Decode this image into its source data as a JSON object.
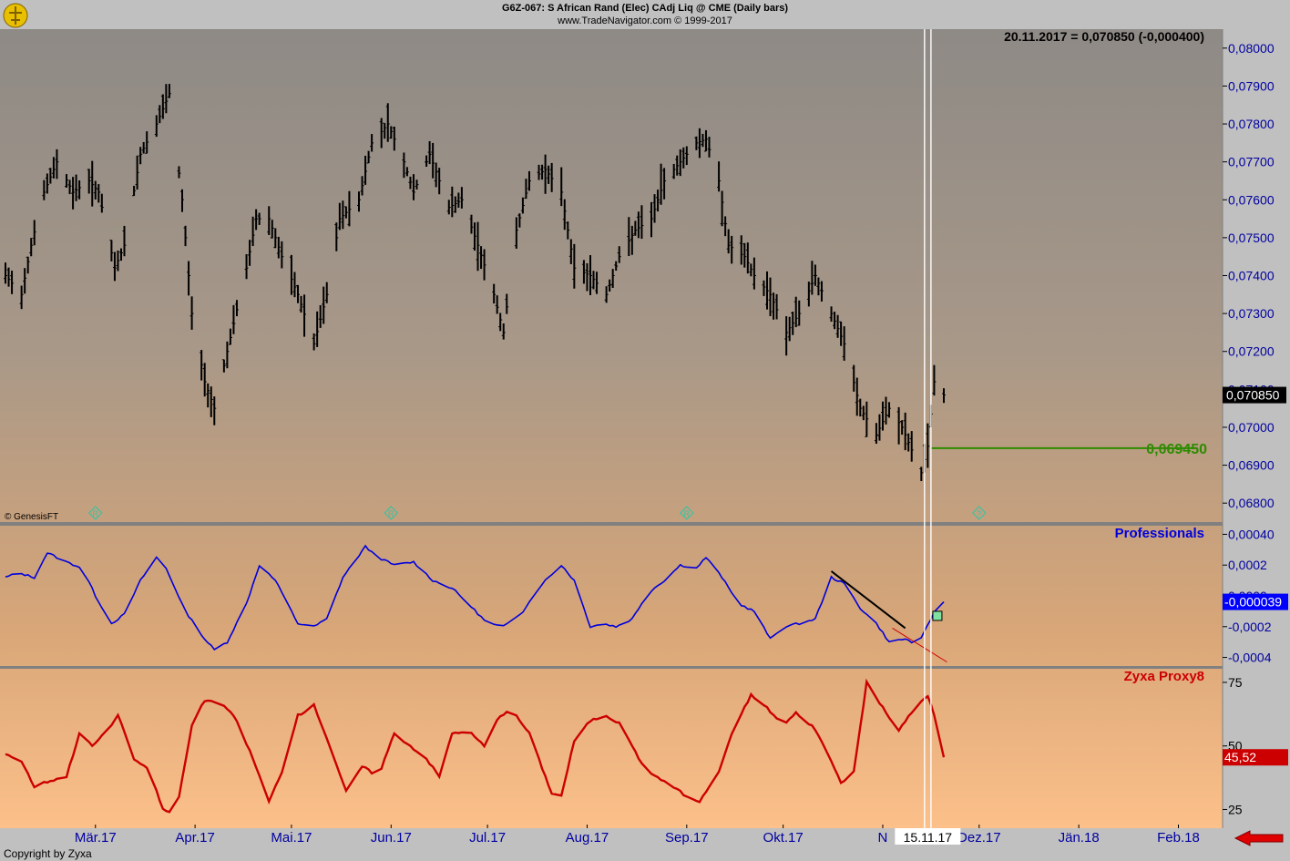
{
  "header": {
    "title": "G6Z-067:  S African Rand (Elec) CAdj Liq @ CME  (Daily bars)",
    "subtitle": "www.TradeNavigator.com © 1999-2017"
  },
  "footer": {
    "copyright": "Copyright by Zyxa"
  },
  "colors": {
    "price_bars": "#000000",
    "professionals": "#0000dd",
    "zyxa": "#cc0000",
    "target_line": "#2e8b00",
    "diamond_markers": "#40c0a0",
    "nav_arrow": "#e00000"
  },
  "chart_data": [
    {
      "type": "ohlc",
      "panel": "price",
      "readout": "20.11.2017 = 0,070850 (-0,000400)",
      "watermark": "© GenesisFT",
      "last_value_label": "0,070850",
      "horizontal_line": {
        "value": 0.06945,
        "label": "0,069450",
        "from_date": "2017-11-16",
        "to_date": "2018-02-07"
      },
      "ylim": [
        0.0675,
        0.0805
      ],
      "y_ticks": [
        0.068,
        0.069,
        0.07,
        0.071,
        0.072,
        0.073,
        0.074,
        0.075,
        0.076,
        0.077,
        0.078,
        0.079,
        0.08
      ],
      "y_tick_labels": [
        "0,06800",
        "0,06900",
        "0,07000",
        "0,07100",
        "0,07200",
        "0,07300",
        "0,07400",
        "0,07500",
        "0,07600",
        "0,07700",
        "0,07800",
        "0,07900",
        "0,08000"
      ],
      "close_path": [
        [
          "2017-02-01",
          0.074
        ],
        [
          "2017-02-06",
          0.0735
        ],
        [
          "2017-02-09",
          0.0748
        ],
        [
          "2017-02-13",
          0.0762
        ],
        [
          "2017-02-17",
          0.077
        ],
        [
          "2017-02-22",
          0.0762
        ],
        [
          "2017-02-27",
          0.0765
        ],
        [
          "2017-03-02",
          0.0762
        ],
        [
          "2017-03-07",
          0.0742
        ],
        [
          "2017-03-10",
          0.0748
        ],
        [
          "2017-03-15",
          0.0772
        ],
        [
          "2017-03-20",
          0.078
        ],
        [
          "2017-03-24",
          0.0788
        ],
        [
          "2017-03-28",
          0.076
        ],
        [
          "2017-03-31",
          0.073
        ],
        [
          "2017-04-04",
          0.0712
        ],
        [
          "2017-04-07",
          0.0705
        ],
        [
          "2017-04-11",
          0.072
        ],
        [
          "2017-04-17",
          0.0742
        ],
        [
          "2017-04-20",
          0.0755
        ],
        [
          "2017-04-24",
          0.0755
        ],
        [
          "2017-04-28",
          0.0745
        ],
        [
          "2017-05-03",
          0.0735
        ],
        [
          "2017-05-08",
          0.0722
        ],
        [
          "2017-05-12",
          0.0735
        ],
        [
          "2017-05-16",
          0.0755
        ],
        [
          "2017-05-22",
          0.076
        ],
        [
          "2017-05-26",
          0.0775
        ],
        [
          "2017-05-31",
          0.078
        ],
        [
          "2017-06-05",
          0.077
        ],
        [
          "2017-06-08",
          0.0762
        ],
        [
          "2017-06-13",
          0.0772
        ],
        [
          "2017-06-19",
          0.0758
        ],
        [
          "2017-06-23",
          0.076
        ],
        [
          "2017-06-28",
          0.0748
        ],
        [
          "2017-07-03",
          0.0735
        ],
        [
          "2017-07-06",
          0.0725
        ],
        [
          "2017-07-10",
          0.0752
        ],
        [
          "2017-07-14",
          0.0765
        ],
        [
          "2017-07-19",
          0.0768
        ],
        [
          "2017-07-24",
          0.0762
        ],
        [
          "2017-07-28",
          0.0742
        ],
        [
          "2017-08-02",
          0.074
        ],
        [
          "2017-08-07",
          0.0735
        ],
        [
          "2017-08-11",
          0.0745
        ],
        [
          "2017-08-16",
          0.0752
        ],
        [
          "2017-08-21",
          0.0755
        ],
        [
          "2017-08-25",
          0.0765
        ],
        [
          "2017-08-30",
          0.077
        ],
        [
          "2017-09-04",
          0.0775
        ],
        [
          "2017-09-07",
          0.0776
        ],
        [
          "2017-09-11",
          0.0765
        ],
        [
          "2017-09-14",
          0.0748
        ],
        [
          "2017-09-19",
          0.0745
        ],
        [
          "2017-09-22",
          0.074
        ],
        [
          "2017-09-27",
          0.0735
        ],
        [
          "2017-10-02",
          0.0725
        ],
        [
          "2017-10-06",
          0.073
        ],
        [
          "2017-10-11",
          0.074
        ],
        [
          "2017-10-16",
          0.073
        ],
        [
          "2017-10-20",
          0.0722
        ],
        [
          "2017-10-25",
          0.0705
        ],
        [
          "2017-10-30",
          0.0698
        ],
        [
          "2017-11-03",
          0.0705
        ],
        [
          "2017-11-07",
          0.07
        ],
        [
          "2017-11-13",
          0.0688
        ],
        [
          "2017-11-15",
          0.0695
        ],
        [
          "2017-11-17",
          0.0712
        ],
        [
          "2017-11-20",
          0.07085
        ]
      ]
    },
    {
      "type": "line",
      "panel": "indicator",
      "title": "Professionals",
      "last_value_label": "-0,000039",
      "ylim": [
        -0.00045,
        0.00045
      ],
      "y_ticks": [
        -0.0004,
        -0.0002,
        0.0,
        0.0002,
        0.0004
      ],
      "y_tick_labels": [
        "-0,0004",
        "-0,0002",
        "0,0000",
        "0,0002",
        "0,00040"
      ],
      "series": [
        {
          "values": [
            [
              "2017-02-01",
              0.00012
            ],
            [
              "2017-02-05",
              0.00015
            ],
            [
              "2017-02-10",
              0.00012
            ],
            [
              "2017-02-14",
              0.00028
            ],
            [
              "2017-02-20",
              0.00022
            ],
            [
              "2017-02-25",
              0.00018
            ],
            [
              "2017-03-01",
              0.0
            ],
            [
              "2017-03-06",
              -0.00018
            ],
            [
              "2017-03-10",
              -0.00012
            ],
            [
              "2017-03-15",
              0.0001
            ],
            [
              "2017-03-20",
              0.00025
            ],
            [
              "2017-03-23",
              0.00018
            ],
            [
              "2017-03-29",
              -0.0001
            ],
            [
              "2017-04-04",
              -0.00028
            ],
            [
              "2017-04-07",
              -0.00035
            ],
            [
              "2017-04-11",
              -0.0003
            ],
            [
              "2017-04-17",
              -5e-05
            ],
            [
              "2017-04-21",
              0.0002
            ],
            [
              "2017-04-26",
              0.0001
            ],
            [
              "2017-05-03",
              -0.00018
            ],
            [
              "2017-05-08",
              -0.0002
            ],
            [
              "2017-05-12",
              -0.00015
            ],
            [
              "2017-05-17",
              0.00012
            ],
            [
              "2017-05-24",
              0.00032
            ],
            [
              "2017-05-28",
              0.00025
            ],
            [
              "2017-06-02",
              0.0002
            ],
            [
              "2017-06-08",
              0.00022
            ],
            [
              "2017-06-14",
              0.0001
            ],
            [
              "2017-06-20",
              5e-05
            ],
            [
              "2017-06-25",
              -5e-05
            ],
            [
              "2017-07-01",
              -0.00018
            ],
            [
              "2017-07-06",
              -0.0002
            ],
            [
              "2017-07-12",
              -0.0001
            ],
            [
              "2017-07-18",
              8e-05
            ],
            [
              "2017-07-24",
              0.0002
            ],
            [
              "2017-07-28",
              0.0001
            ],
            [
              "2017-08-02",
              -0.0002
            ],
            [
              "2017-08-06",
              -0.00018
            ],
            [
              "2017-08-10",
              -0.0002
            ],
            [
              "2017-08-15",
              -0.00015
            ],
            [
              "2017-08-20",
              2e-05
            ],
            [
              "2017-08-25",
              0.0001
            ],
            [
              "2017-08-30",
              0.0002
            ],
            [
              "2017-09-04",
              0.00018
            ],
            [
              "2017-09-07",
              0.00025
            ],
            [
              "2017-09-12",
              0.00012
            ],
            [
              "2017-09-17",
              -5e-05
            ],
            [
              "2017-09-22",
              -0.0001
            ],
            [
              "2017-09-27",
              -0.00028
            ],
            [
              "2017-10-01",
              -0.0002
            ],
            [
              "2017-10-06",
              -0.00018
            ],
            [
              "2017-10-11",
              -0.00015
            ],
            [
              "2017-10-16",
              0.00012
            ],
            [
              "2017-10-20",
              8e-05
            ],
            [
              "2017-10-25",
              -8e-05
            ],
            [
              "2017-10-30",
              -0.00018
            ],
            [
              "2017-11-03",
              -0.0003
            ],
            [
              "2017-11-08",
              -0.00028
            ],
            [
              "2017-11-12",
              -0.00032
            ],
            [
              "2017-11-16",
              -0.00015
            ],
            [
              "2017-11-18",
              -5e-05
            ],
            [
              "2017-11-20",
              -3.9e-05
            ]
          ]
        }
      ],
      "trendlines": [
        {
          "color": "#000000",
          "from": [
            "2017-10-16",
            0.00016
          ],
          "to": [
            "2017-11-08",
            -0.00021
          ]
        },
        {
          "color": "#cc0000",
          "from": [
            "2017-11-04",
            -0.00021
          ],
          "to": [
            "2017-11-21",
            -0.00043
          ]
        }
      ],
      "marker_box": [
        "2017-11-18",
        -0.00013
      ]
    },
    {
      "type": "line",
      "panel": "indicator",
      "title": "Zyxa Proxy8",
      "last_value_label": "45,52",
      "ylim": [
        18,
        80
      ],
      "y_ticks": [
        25,
        50,
        75
      ],
      "y_tick_labels": [
        "25",
        "50",
        "75"
      ],
      "series": [
        {
          "values": [
            [
              "2017-02-01",
              47
            ],
            [
              "2017-02-06",
              44
            ],
            [
              "2017-02-10",
              34
            ],
            [
              "2017-02-14",
              36
            ],
            [
              "2017-02-20",
              38
            ],
            [
              "2017-02-24",
              55
            ],
            [
              "2017-02-28",
              50
            ],
            [
              "2017-03-04",
              55
            ],
            [
              "2017-03-08",
              62
            ],
            [
              "2017-03-13",
              45
            ],
            [
              "2017-03-18",
              40
            ],
            [
              "2017-03-22",
              25
            ],
            [
              "2017-03-26",
              23
            ],
            [
              "2017-03-31",
              58
            ],
            [
              "2017-04-04",
              68
            ],
            [
              "2017-04-10",
              66
            ],
            [
              "2017-04-14",
              60
            ],
            [
              "2017-04-19",
              45
            ],
            [
              "2017-04-24",
              28
            ],
            [
              "2017-04-28",
              40
            ],
            [
              "2017-05-03",
              62
            ],
            [
              "2017-05-08",
              66
            ],
            [
              "2017-05-13",
              50
            ],
            [
              "2017-05-18",
              32
            ],
            [
              "2017-05-23",
              42
            ],
            [
              "2017-05-28",
              38
            ],
            [
              "2017-06-02",
              55
            ],
            [
              "2017-06-07",
              50
            ],
            [
              "2017-06-12",
              45
            ],
            [
              "2017-06-16",
              38
            ],
            [
              "2017-06-20",
              55
            ],
            [
              "2017-06-25",
              56
            ],
            [
              "2017-06-30",
              50
            ],
            [
              "2017-07-04",
              60
            ],
            [
              "2017-07-08",
              65
            ],
            [
              "2017-07-14",
              55
            ],
            [
              "2017-07-19",
              38
            ],
            [
              "2017-07-23",
              25
            ],
            [
              "2017-07-28",
              52
            ],
            [
              "2017-08-02",
              60
            ],
            [
              "2017-08-07",
              62
            ],
            [
              "2017-08-12",
              58
            ],
            [
              "2017-08-17",
              45
            ],
            [
              "2017-08-22",
              38
            ],
            [
              "2017-08-27",
              35
            ],
            [
              "2017-09-01",
              30
            ],
            [
              "2017-09-05",
              28
            ],
            [
              "2017-09-11",
              40
            ],
            [
              "2017-09-16",
              58
            ],
            [
              "2017-09-21",
              70
            ],
            [
              "2017-09-26",
              65
            ],
            [
              "2017-10-01",
              58
            ],
            [
              "2017-10-05",
              63
            ],
            [
              "2017-10-10",
              58
            ],
            [
              "2017-10-14",
              50
            ],
            [
              "2017-10-19",
              35
            ],
            [
              "2017-10-23",
              40
            ],
            [
              "2017-10-27",
              75
            ],
            [
              "2017-11-01",
              65
            ],
            [
              "2017-11-06",
              56
            ],
            [
              "2017-11-11",
              65
            ],
            [
              "2017-11-15",
              70
            ],
            [
              "2017-11-18",
              58
            ],
            [
              "2017-11-20",
              45.52
            ]
          ]
        }
      ]
    }
  ],
  "x_axis": {
    "labels": [
      {
        "date": "2017-03-01",
        "label": "Mär.17"
      },
      {
        "date": "2017-04-01",
        "label": "Apr.17"
      },
      {
        "date": "2017-05-01",
        "label": "Mai.17"
      },
      {
        "date": "2017-06-01",
        "label": "Jun.17"
      },
      {
        "date": "2017-07-01",
        "label": "Jul.17"
      },
      {
        "date": "2017-08-01",
        "label": "Aug.17"
      },
      {
        "date": "2017-09-01",
        "label": "Sep.17"
      },
      {
        "date": "2017-10-01",
        "label": "Okt.17"
      },
      {
        "date": "2017-11-01",
        "label": "N"
      },
      {
        "date": "2017-12-01",
        "label": "Dez.17"
      },
      {
        "date": "2018-01-01",
        "label": "Jän.18"
      },
      {
        "date": "2018-02-01",
        "label": "Feb.18"
      }
    ],
    "cursor_label": "15.11.17",
    "cursor_dates": [
      "2017-11-14",
      "2017-11-16"
    ]
  },
  "markers": [
    {
      "date": "2017-03-01",
      "symbol": "R"
    },
    {
      "date": "2017-06-01",
      "symbol": "R"
    },
    {
      "date": "2017-09-01",
      "symbol": "R"
    },
    {
      "date": "2017-12-01",
      "symbol": "?"
    }
  ]
}
